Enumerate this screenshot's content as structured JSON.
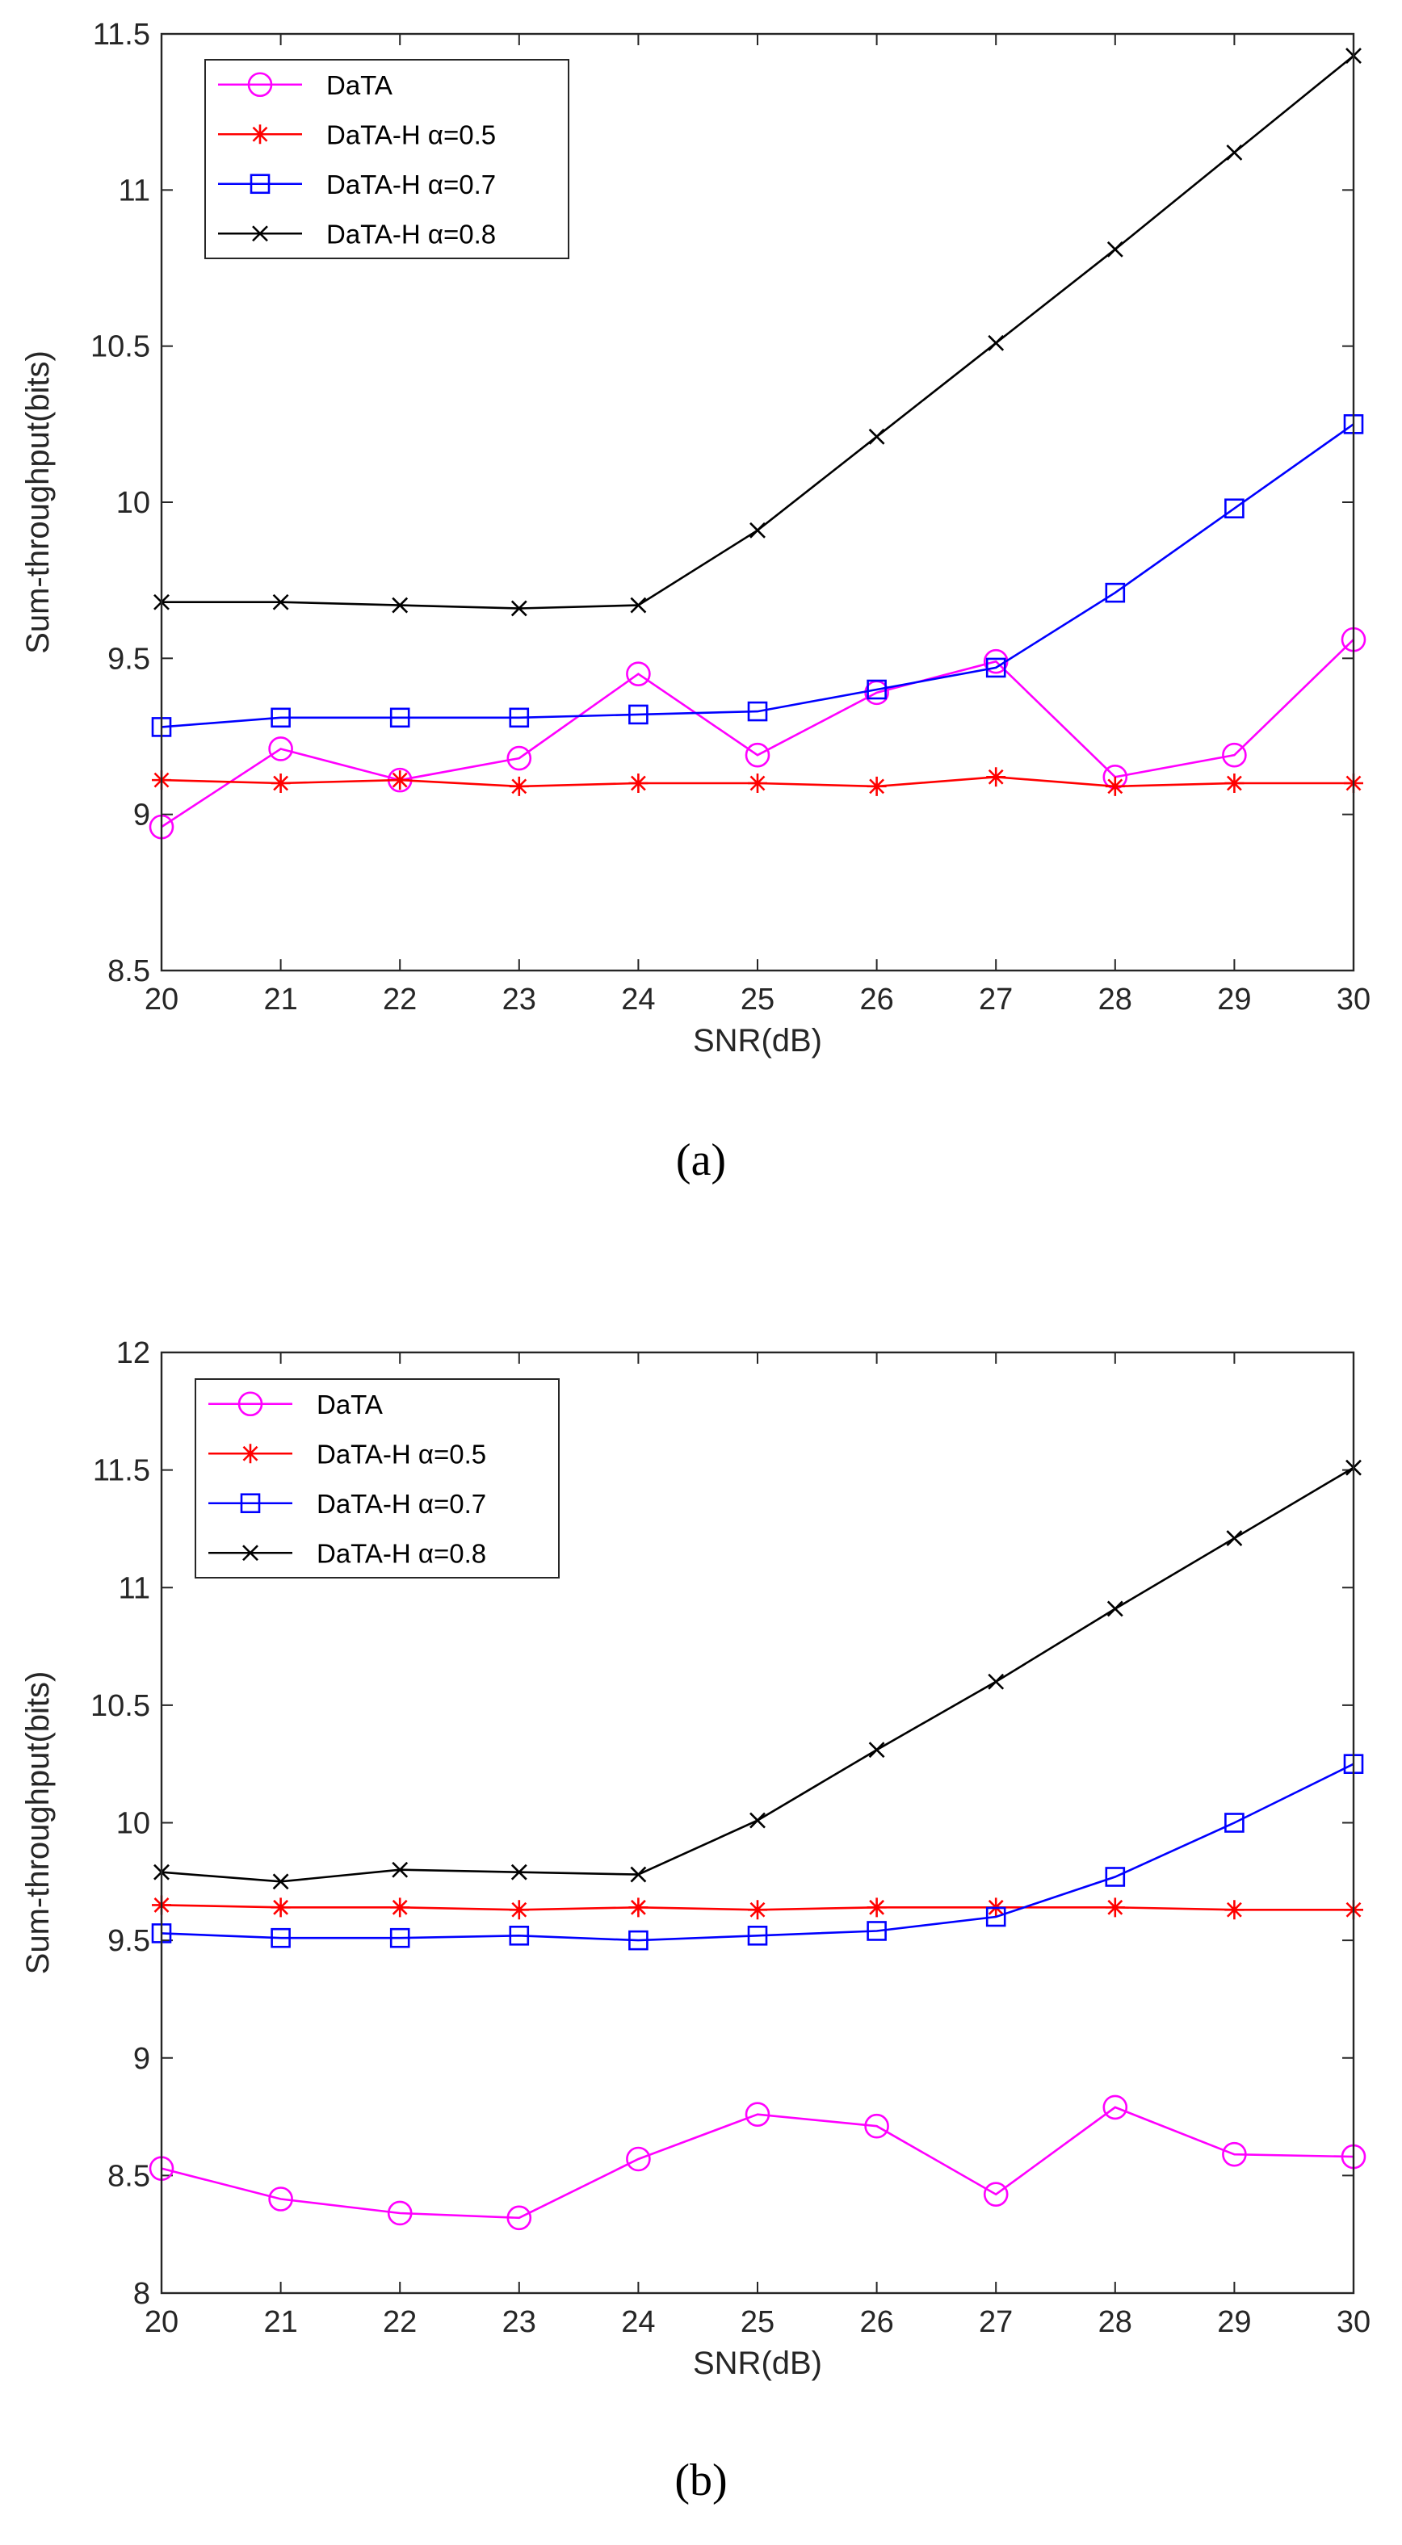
{
  "chart_data": [
    {
      "type": "line",
      "caption": "(a)",
      "title": "",
      "xlabel": "SNR(dB)",
      "ylabel": "Sum-throughput(bits)",
      "xlim": [
        20,
        30
      ],
      "ylim": [
        8.5,
        11.5
      ],
      "x": [
        20,
        21,
        22,
        23,
        24,
        25,
        26,
        27,
        28,
        29,
        30
      ],
      "xticks": [
        "20",
        "21",
        "22",
        "23",
        "24",
        "25",
        "26",
        "27",
        "28",
        "29",
        "30"
      ],
      "yticks": [
        "8.5",
        "9",
        "9.5",
        "10",
        "10.5",
        "11",
        "11.5"
      ],
      "ytick_values": [
        8.5,
        9,
        9.5,
        10,
        10.5,
        11,
        11.5
      ],
      "legend_position": "top-left",
      "series": [
        {
          "name": "DaTA",
          "color": "#ff00ff",
          "marker": "circle",
          "values": [
            8.96,
            9.21,
            9.11,
            9.18,
            9.45,
            9.19,
            9.39,
            9.49,
            9.12,
            9.19,
            9.56
          ]
        },
        {
          "name": "DaTA-H α=0.5",
          "color": "#ff0000",
          "marker": "asterisk",
          "values": [
            9.11,
            9.1,
            9.11,
            9.09,
            9.1,
            9.1,
            9.09,
            9.12,
            9.09,
            9.1,
            9.1
          ]
        },
        {
          "name": "DaTA-H α=0.7",
          "color": "#0000ff",
          "marker": "square",
          "values": [
            9.28,
            9.31,
            9.31,
            9.31,
            9.32,
            9.33,
            9.4,
            9.47,
            9.71,
            9.98,
            10.25
          ]
        },
        {
          "name": "DaTA-H α=0.8",
          "color": "#000000",
          "marker": "x",
          "values": [
            9.68,
            9.68,
            9.67,
            9.66,
            9.67,
            9.91,
            10.21,
            10.51,
            10.81,
            11.12,
            11.43
          ]
        }
      ]
    },
    {
      "type": "line",
      "caption": "(b)",
      "title": "",
      "xlabel": "SNR(dB)",
      "ylabel": "Sum-throughput(bits)",
      "xlim": [
        20,
        30
      ],
      "ylim": [
        8,
        12
      ],
      "x": [
        20,
        21,
        22,
        23,
        24,
        25,
        26,
        27,
        28,
        29,
        30
      ],
      "xticks": [
        "20",
        "21",
        "22",
        "23",
        "24",
        "25",
        "26",
        "27",
        "28",
        "29",
        "30"
      ],
      "yticks": [
        "8",
        "8.5",
        "9",
        "9.5",
        "10",
        "10.5",
        "11",
        "11.5",
        "12"
      ],
      "ytick_values": [
        8,
        8.5,
        9,
        9.5,
        10,
        10.5,
        11,
        11.5,
        12
      ],
      "legend_position": "top-left",
      "series": [
        {
          "name": "DaTA",
          "color": "#ff00ff",
          "marker": "circle",
          "values": [
            8.53,
            8.4,
            8.34,
            8.32,
            8.57,
            8.76,
            8.71,
            8.42,
            8.79,
            8.59,
            8.58
          ]
        },
        {
          "name": "DaTA-H α=0.5",
          "color": "#ff0000",
          "marker": "asterisk",
          "values": [
            9.65,
            9.64,
            9.64,
            9.63,
            9.64,
            9.63,
            9.64,
            9.64,
            9.64,
            9.63,
            9.63
          ]
        },
        {
          "name": "DaTA-H α=0.7",
          "color": "#0000ff",
          "marker": "square",
          "values": [
            9.53,
            9.51,
            9.51,
            9.52,
            9.5,
            9.52,
            9.54,
            9.6,
            9.77,
            10.0,
            10.25
          ]
        },
        {
          "name": "DaTA-H α=0.8",
          "color": "#000000",
          "marker": "x",
          "values": [
            9.79,
            9.75,
            9.8,
            9.79,
            9.78,
            10.01,
            10.31,
            10.6,
            10.91,
            11.21,
            11.51
          ]
        }
      ]
    }
  ]
}
